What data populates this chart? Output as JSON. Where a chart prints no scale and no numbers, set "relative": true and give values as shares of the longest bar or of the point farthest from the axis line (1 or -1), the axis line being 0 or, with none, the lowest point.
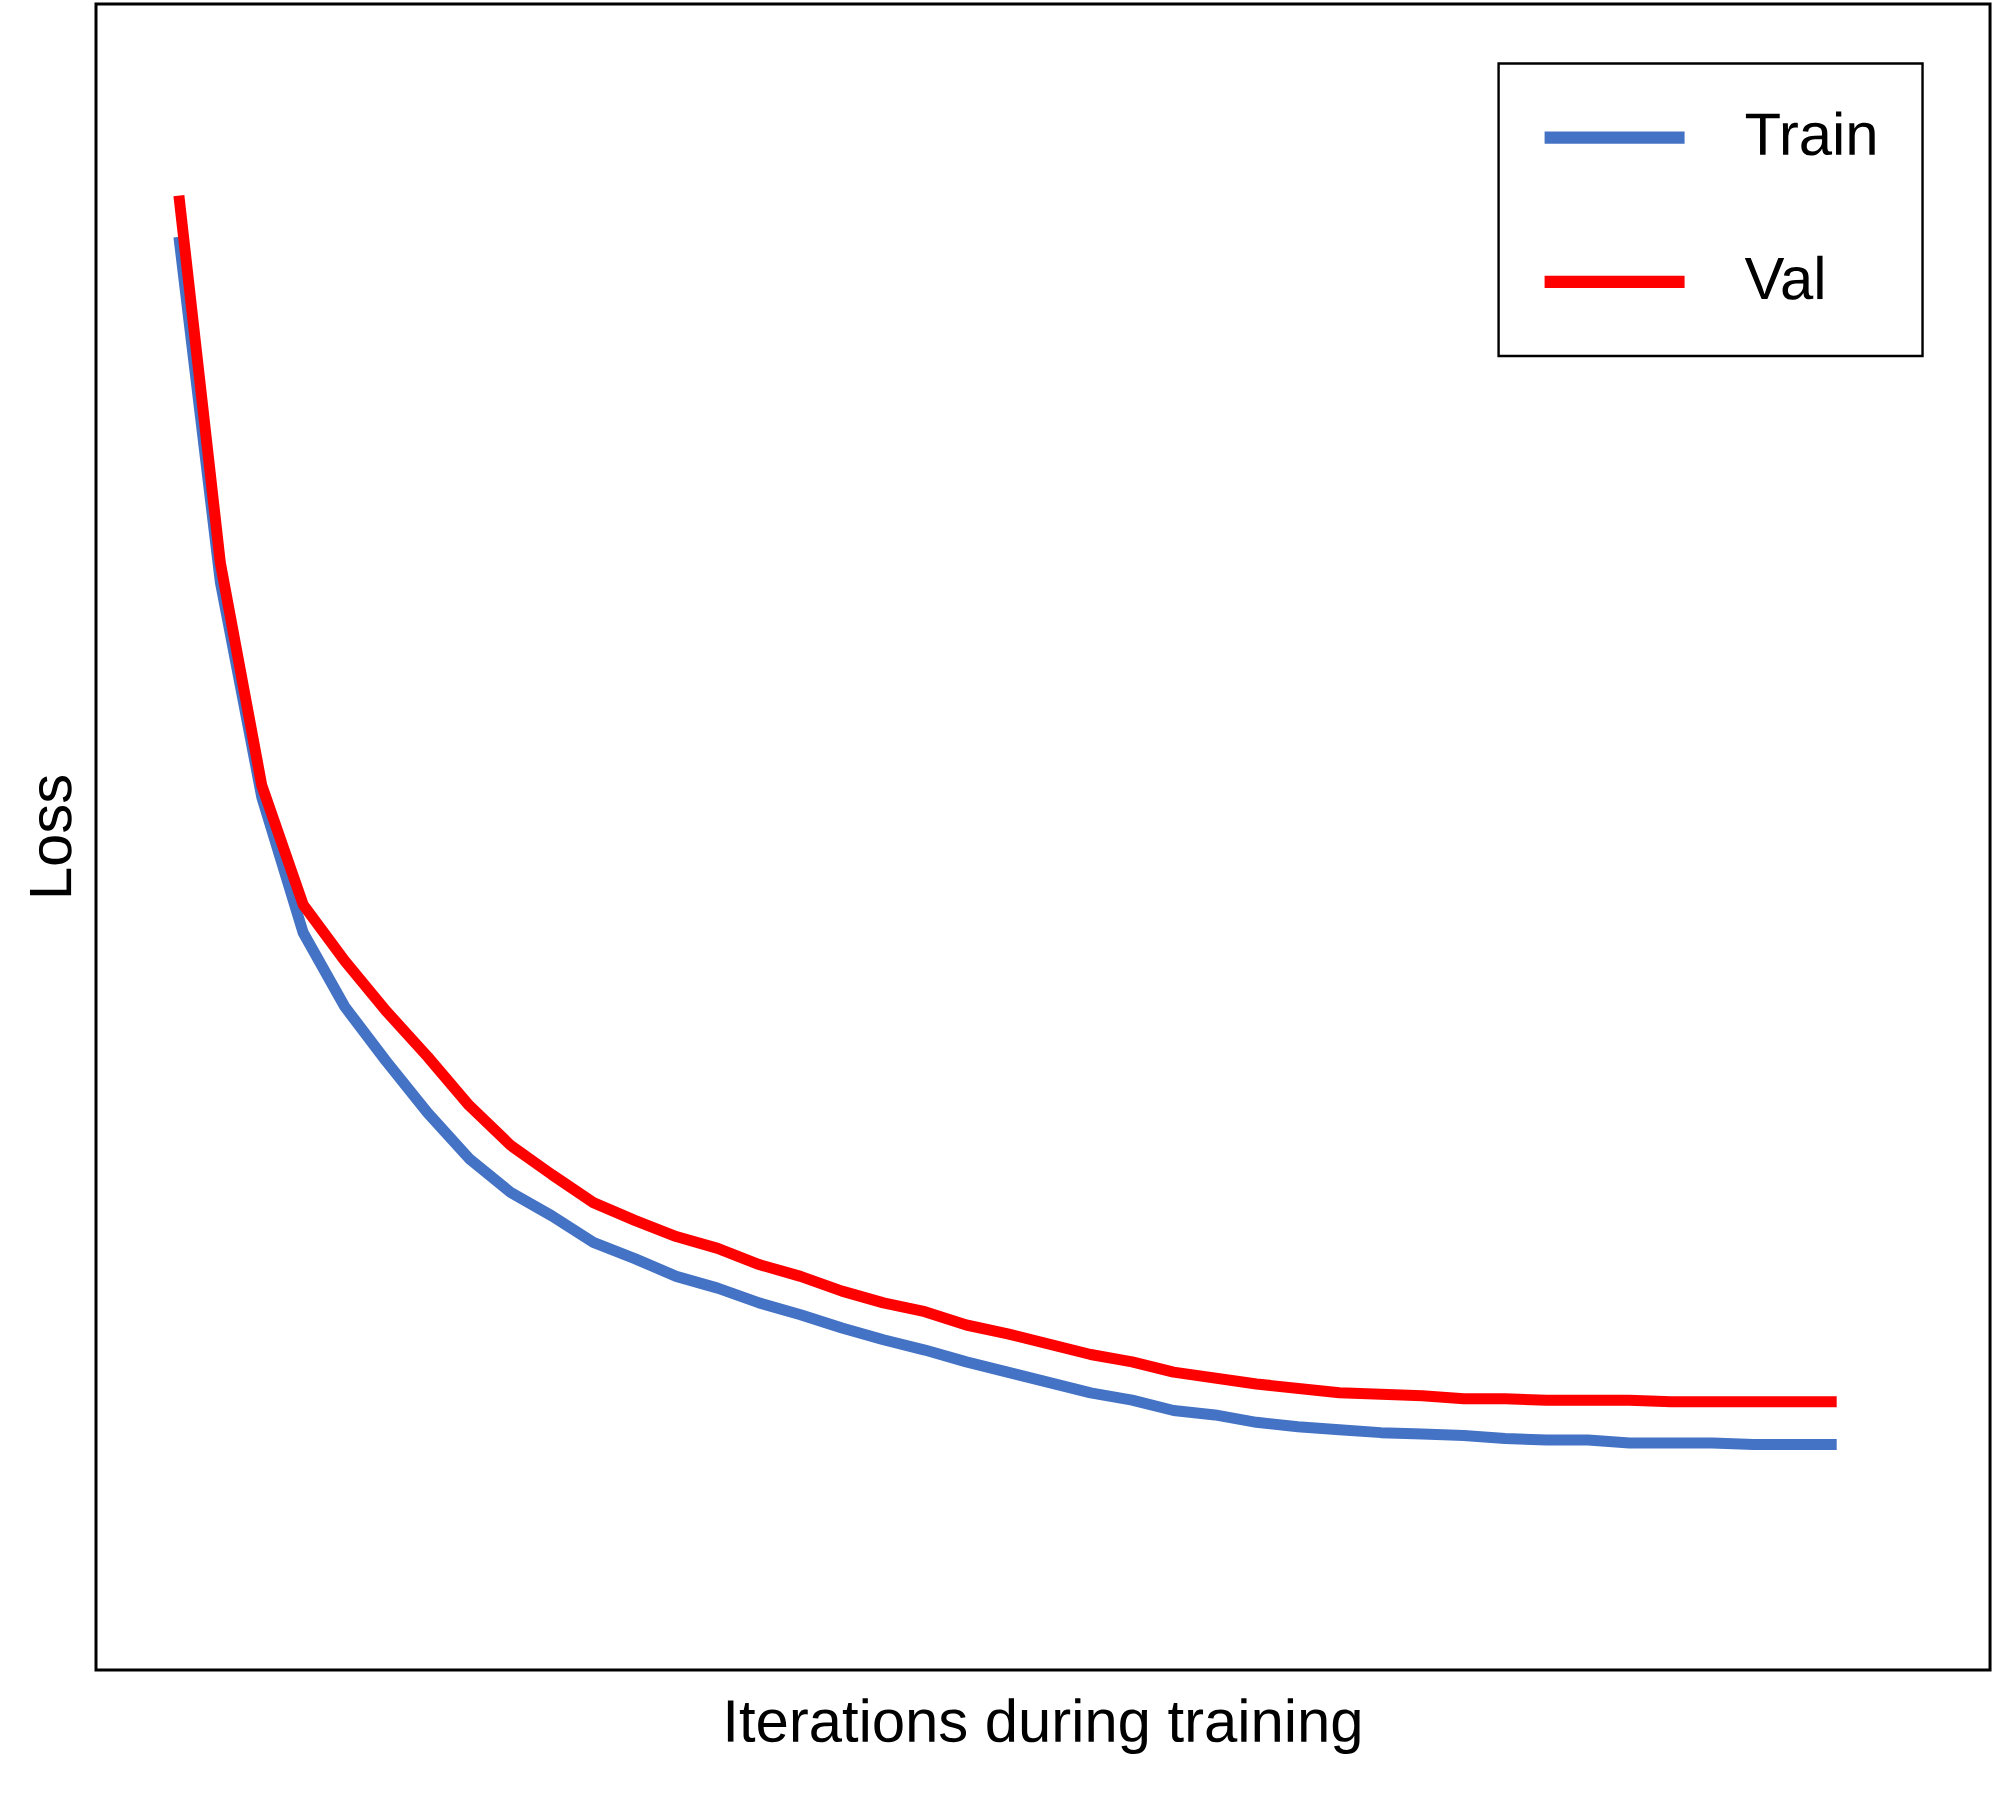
{
  "chart_data": {
    "type": "line",
    "relative": true,
    "xlabel": "Iterations during training",
    "ylabel": "Loss",
    "legend": "top right",
    "categories": [
      null,
      null,
      null,
      null,
      null,
      null,
      null,
      null,
      null,
      null,
      null,
      null,
      null,
      null,
      null,
      null,
      null,
      null,
      null,
      null,
      null,
      null,
      null,
      null,
      null,
      null,
      null,
      null,
      null,
      null,
      null,
      null,
      null,
      null,
      null,
      null,
      null,
      null,
      null,
      null,
      null
    ],
    "series": [
      {
        "name": "Train",
        "color": "#4472c4",
        "values": [
          0.972,
          0.738,
          0.592,
          0.5,
          0.45,
          0.413,
          0.378,
          0.347,
          0.324,
          0.308,
          0.29,
          0.279,
          0.267,
          0.259,
          0.249,
          0.241,
          0.232,
          0.224,
          0.217,
          0.209,
          0.202,
          0.195,
          0.188,
          0.183,
          0.176,
          0.173,
          0.168,
          0.165,
          0.163,
          0.161,
          0.16,
          0.159,
          0.157,
          0.156,
          0.156,
          0.154,
          0.154,
          0.154,
          0.153,
          0.153,
          0.153
        ]
      },
      {
        "name": "Val",
        "color": "#ff0000",
        "values": [
          1,
          0.751,
          0.6,
          0.519,
          0.481,
          0.447,
          0.416,
          0.383,
          0.356,
          0.336,
          0.317,
          0.305,
          0.294,
          0.286,
          0.275,
          0.267,
          0.257,
          0.249,
          0.243,
          0.234,
          0.228,
          0.221,
          0.214,
          0.209,
          0.202,
          0.198,
          0.194,
          0.191,
          0.188,
          0.187,
          0.186,
          0.184,
          0.184,
          0.183,
          0.183,
          0.183,
          0.182,
          0.182,
          0.182,
          0.182,
          0.182
        ]
      }
    ]
  }
}
